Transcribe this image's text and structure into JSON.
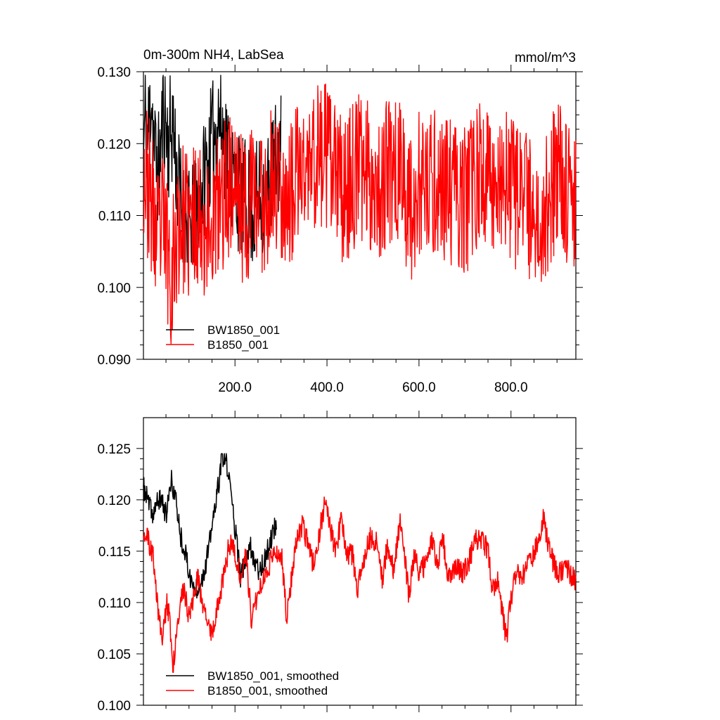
{
  "figure": {
    "title_left": "0m-300m NH4, LabSea",
    "title_right": "mmol/m^3"
  },
  "chart_data": [
    {
      "type": "line",
      "xlim": [
        1,
        941
      ],
      "ylim": [
        0.09,
        0.13
      ],
      "y_ticks": [
        0.09,
        0.1,
        0.11,
        0.12,
        0.13
      ],
      "y_tick_labels": [
        "0.090",
        "0.100",
        "0.110",
        "0.120",
        "0.130"
      ],
      "x_ticks": [
        200,
        400,
        600,
        800
      ],
      "x_tick_labels": [
        "200.0",
        "400.0",
        "600.0",
        "800.0"
      ],
      "legend_position": "bottom-left",
      "grid": false,
      "series": [
        {
          "name": "BW1850_001",
          "color": "#000000",
          "x_range": [
            1,
            300
          ],
          "control_points": [
            {
              "x": 1,
              "y": 0.118
            },
            {
              "x": 5,
              "y": 0.124
            },
            {
              "x": 10,
              "y": 0.12
            },
            {
              "x": 18,
              "y": 0.128
            },
            {
              "x": 25,
              "y": 0.119
            },
            {
              "x": 35,
              "y": 0.116
            },
            {
              "x": 45,
              "y": 0.125
            },
            {
              "x": 55,
              "y": 0.12
            },
            {
              "x": 65,
              "y": 0.123
            },
            {
              "x": 75,
              "y": 0.115
            },
            {
              "x": 90,
              "y": 0.109
            },
            {
              "x": 105,
              "y": 0.108
            },
            {
              "x": 120,
              "y": 0.111
            },
            {
              "x": 135,
              "y": 0.116
            },
            {
              "x": 150,
              "y": 0.12
            },
            {
              "x": 165,
              "y": 0.124
            },
            {
              "x": 180,
              "y": 0.12
            },
            {
              "x": 195,
              "y": 0.115
            },
            {
              "x": 210,
              "y": 0.113
            },
            {
              "x": 225,
              "y": 0.112
            },
            {
              "x": 240,
              "y": 0.111
            },
            {
              "x": 255,
              "y": 0.113
            },
            {
              "x": 270,
              "y": 0.113
            },
            {
              "x": 285,
              "y": 0.117
            },
            {
              "x": 300,
              "y": 0.119
            }
          ],
          "noise_amplitude": 0.0085,
          "ymin": 0.1035,
          "ymax": 0.1295,
          "seed": 11
        },
        {
          "name": "B1850_001",
          "color": "#ff0000",
          "x_range": [
            1,
            941
          ],
          "control_points": [
            {
              "x": 1,
              "y": 0.117
            },
            {
              "x": 15,
              "y": 0.113
            },
            {
              "x": 30,
              "y": 0.106
            },
            {
              "x": 45,
              "y": 0.109
            },
            {
              "x": 62,
              "y": 0.102
            },
            {
              "x": 80,
              "y": 0.11
            },
            {
              "x": 100,
              "y": 0.108
            },
            {
              "x": 120,
              "y": 0.111
            },
            {
              "x": 140,
              "y": 0.108
            },
            {
              "x": 160,
              "y": 0.11
            },
            {
              "x": 180,
              "y": 0.114
            },
            {
              "x": 200,
              "y": 0.115
            },
            {
              "x": 220,
              "y": 0.11
            },
            {
              "x": 240,
              "y": 0.113
            },
            {
              "x": 260,
              "y": 0.112
            },
            {
              "x": 280,
              "y": 0.115
            },
            {
              "x": 300,
              "y": 0.114
            },
            {
              "x": 320,
              "y": 0.112
            },
            {
              "x": 340,
              "y": 0.116
            },
            {
              "x": 360,
              "y": 0.116
            },
            {
              "x": 380,
              "y": 0.119
            },
            {
              "x": 400,
              "y": 0.118
            },
            {
              "x": 420,
              "y": 0.115
            },
            {
              "x": 440,
              "y": 0.113
            },
            {
              "x": 460,
              "y": 0.116
            },
            {
              "x": 480,
              "y": 0.117
            },
            {
              "x": 500,
              "y": 0.115
            },
            {
              "x": 520,
              "y": 0.114
            },
            {
              "x": 540,
              "y": 0.117
            },
            {
              "x": 560,
              "y": 0.116
            },
            {
              "x": 580,
              "y": 0.111
            },
            {
              "x": 600,
              "y": 0.114
            },
            {
              "x": 620,
              "y": 0.113
            },
            {
              "x": 640,
              "y": 0.115
            },
            {
              "x": 660,
              "y": 0.113
            },
            {
              "x": 680,
              "y": 0.113
            },
            {
              "x": 700,
              "y": 0.112
            },
            {
              "x": 720,
              "y": 0.114
            },
            {
              "x": 740,
              "y": 0.116
            },
            {
              "x": 760,
              "y": 0.115
            },
            {
              "x": 780,
              "y": 0.115
            },
            {
              "x": 800,
              "y": 0.113
            },
            {
              "x": 820,
              "y": 0.113
            },
            {
              "x": 840,
              "y": 0.111
            },
            {
              "x": 860,
              "y": 0.108
            },
            {
              "x": 880,
              "y": 0.112
            },
            {
              "x": 900,
              "y": 0.116
            },
            {
              "x": 920,
              "y": 0.114
            },
            {
              "x": 941,
              "y": 0.113
            }
          ],
          "noise_amplitude": 0.0105,
          "ymin": 0.0915,
          "ymax": 0.129,
          "seed": 23
        }
      ]
    },
    {
      "type": "line",
      "xlim": [
        1,
        941
      ],
      "ylim": [
        0.1,
        0.128
      ],
      "y_ticks": [
        0.1,
        0.105,
        0.11,
        0.115,
        0.12,
        0.125
      ],
      "y_tick_labels": [
        "0.100",
        "0.105",
        "0.110",
        "0.115",
        "0.120",
        "0.125"
      ],
      "x_ticks": [
        200,
        400,
        600,
        800
      ],
      "x_tick_labels": [],
      "legend_position": "bottom-left",
      "grid": false,
      "series": [
        {
          "name": "BW1850_001, smoothed",
          "color": "#000000",
          "x_range": [
            1,
            290
          ],
          "control_points": [
            {
              "x": 1,
              "y": 0.1212
            },
            {
              "x": 12,
              "y": 0.1198
            },
            {
              "x": 20,
              "y": 0.1185
            },
            {
              "x": 30,
              "y": 0.1196
            },
            {
              "x": 40,
              "y": 0.1202
            },
            {
              "x": 50,
              "y": 0.1185
            },
            {
              "x": 62,
              "y": 0.1218
            },
            {
              "x": 72,
              "y": 0.1198
            },
            {
              "x": 82,
              "y": 0.1165
            },
            {
              "x": 92,
              "y": 0.1148
            },
            {
              "x": 102,
              "y": 0.1125
            },
            {
              "x": 112,
              "y": 0.1112
            },
            {
              "x": 122,
              "y": 0.1118
            },
            {
              "x": 132,
              "y": 0.1128
            },
            {
              "x": 142,
              "y": 0.115
            },
            {
              "x": 152,
              "y": 0.118
            },
            {
              "x": 162,
              "y": 0.1208
            },
            {
              "x": 172,
              "y": 0.124
            },
            {
              "x": 182,
              "y": 0.1235
            },
            {
              "x": 192,
              "y": 0.1205
            },
            {
              "x": 202,
              "y": 0.1165
            },
            {
              "x": 212,
              "y": 0.1125
            },
            {
              "x": 222,
              "y": 0.1138
            },
            {
              "x": 232,
              "y": 0.1158
            },
            {
              "x": 242,
              "y": 0.1142
            },
            {
              "x": 252,
              "y": 0.1132
            },
            {
              "x": 262,
              "y": 0.1138
            },
            {
              "x": 272,
              "y": 0.1152
            },
            {
              "x": 282,
              "y": 0.1168
            },
            {
              "x": 290,
              "y": 0.1178
            }
          ],
          "noise_amplitude": 0.0011,
          "ymin": 0.1095,
          "ymax": 0.1245,
          "seed": 37
        },
        {
          "name": "B1850_001, smoothed",
          "color": "#ff0000",
          "x_range": [
            1,
            941
          ],
          "control_points": [
            {
              "x": 1,
              "y": 0.1172
            },
            {
              "x": 10,
              "y": 0.1162
            },
            {
              "x": 22,
              "y": 0.1145
            },
            {
              "x": 32,
              "y": 0.1095
            },
            {
              "x": 42,
              "y": 0.1065
            },
            {
              "x": 52,
              "y": 0.1098
            },
            {
              "x": 58,
              "y": 0.1085
            },
            {
              "x": 65,
              "y": 0.1035
            },
            {
              "x": 75,
              "y": 0.1085
            },
            {
              "x": 88,
              "y": 0.1112
            },
            {
              "x": 100,
              "y": 0.1088
            },
            {
              "x": 110,
              "y": 0.1105
            },
            {
              "x": 120,
              "y": 0.1125
            },
            {
              "x": 130,
              "y": 0.1098
            },
            {
              "x": 140,
              "y": 0.1078
            },
            {
              "x": 150,
              "y": 0.1072
            },
            {
              "x": 162,
              "y": 0.1095
            },
            {
              "x": 175,
              "y": 0.1125
            },
            {
              "x": 188,
              "y": 0.1158
            },
            {
              "x": 200,
              "y": 0.1148
            },
            {
              "x": 212,
              "y": 0.1125
            },
            {
              "x": 224,
              "y": 0.1148
            },
            {
              "x": 236,
              "y": 0.1082
            },
            {
              "x": 248,
              "y": 0.1108
            },
            {
              "x": 262,
              "y": 0.1125
            },
            {
              "x": 275,
              "y": 0.1138
            },
            {
              "x": 290,
              "y": 0.1152
            },
            {
              "x": 302,
              "y": 0.1142
            },
            {
              "x": 312,
              "y": 0.1085
            },
            {
              "x": 322,
              "y": 0.1122
            },
            {
              "x": 334,
              "y": 0.1158
            },
            {
              "x": 346,
              "y": 0.1175
            },
            {
              "x": 358,
              "y": 0.1158
            },
            {
              "x": 372,
              "y": 0.1135
            },
            {
              "x": 386,
              "y": 0.1175
            },
            {
              "x": 396,
              "y": 0.1198
            },
            {
              "x": 408,
              "y": 0.1168
            },
            {
              "x": 420,
              "y": 0.1152
            },
            {
              "x": 432,
              "y": 0.1185
            },
            {
              "x": 442,
              "y": 0.1148
            },
            {
              "x": 456,
              "y": 0.1145
            },
            {
              "x": 466,
              "y": 0.1112
            },
            {
              "x": 480,
              "y": 0.1142
            },
            {
              "x": 495,
              "y": 0.1165
            },
            {
              "x": 508,
              "y": 0.1158
            },
            {
              "x": 520,
              "y": 0.1122
            },
            {
              "x": 532,
              "y": 0.1158
            },
            {
              "x": 545,
              "y": 0.1132
            },
            {
              "x": 558,
              "y": 0.1178
            },
            {
              "x": 568,
              "y": 0.1152
            },
            {
              "x": 578,
              "y": 0.1105
            },
            {
              "x": 590,
              "y": 0.1148
            },
            {
              "x": 600,
              "y": 0.1128
            },
            {
              "x": 615,
              "y": 0.1138
            },
            {
              "x": 628,
              "y": 0.1162
            },
            {
              "x": 640,
              "y": 0.1138
            },
            {
              "x": 652,
              "y": 0.1162
            },
            {
              "x": 665,
              "y": 0.1122
            },
            {
              "x": 680,
              "y": 0.1138
            },
            {
              "x": 695,
              "y": 0.1128
            },
            {
              "x": 710,
              "y": 0.1142
            },
            {
              "x": 725,
              "y": 0.1162
            },
            {
              "x": 738,
              "y": 0.1158
            },
            {
              "x": 750,
              "y": 0.1152
            },
            {
              "x": 760,
              "y": 0.1112
            },
            {
              "x": 770,
              "y": 0.1122
            },
            {
              "x": 778,
              "y": 0.1102
            },
            {
              "x": 790,
              "y": 0.1065
            },
            {
              "x": 800,
              "y": 0.1102
            },
            {
              "x": 812,
              "y": 0.1132
            },
            {
              "x": 824,
              "y": 0.1125
            },
            {
              "x": 836,
              "y": 0.1138
            },
            {
              "x": 848,
              "y": 0.1145
            },
            {
              "x": 860,
              "y": 0.1165
            },
            {
              "x": 870,
              "y": 0.1182
            },
            {
              "x": 880,
              "y": 0.1158
            },
            {
              "x": 892,
              "y": 0.1138
            },
            {
              "x": 905,
              "y": 0.1128
            },
            {
              "x": 920,
              "y": 0.1135
            },
            {
              "x": 932,
              "y": 0.1125
            },
            {
              "x": 941,
              "y": 0.1122
            }
          ],
          "noise_amplitude": 0.0011,
          "ymin": 0.1032,
          "ymax": 0.1205,
          "seed": 51
        }
      ]
    }
  ]
}
